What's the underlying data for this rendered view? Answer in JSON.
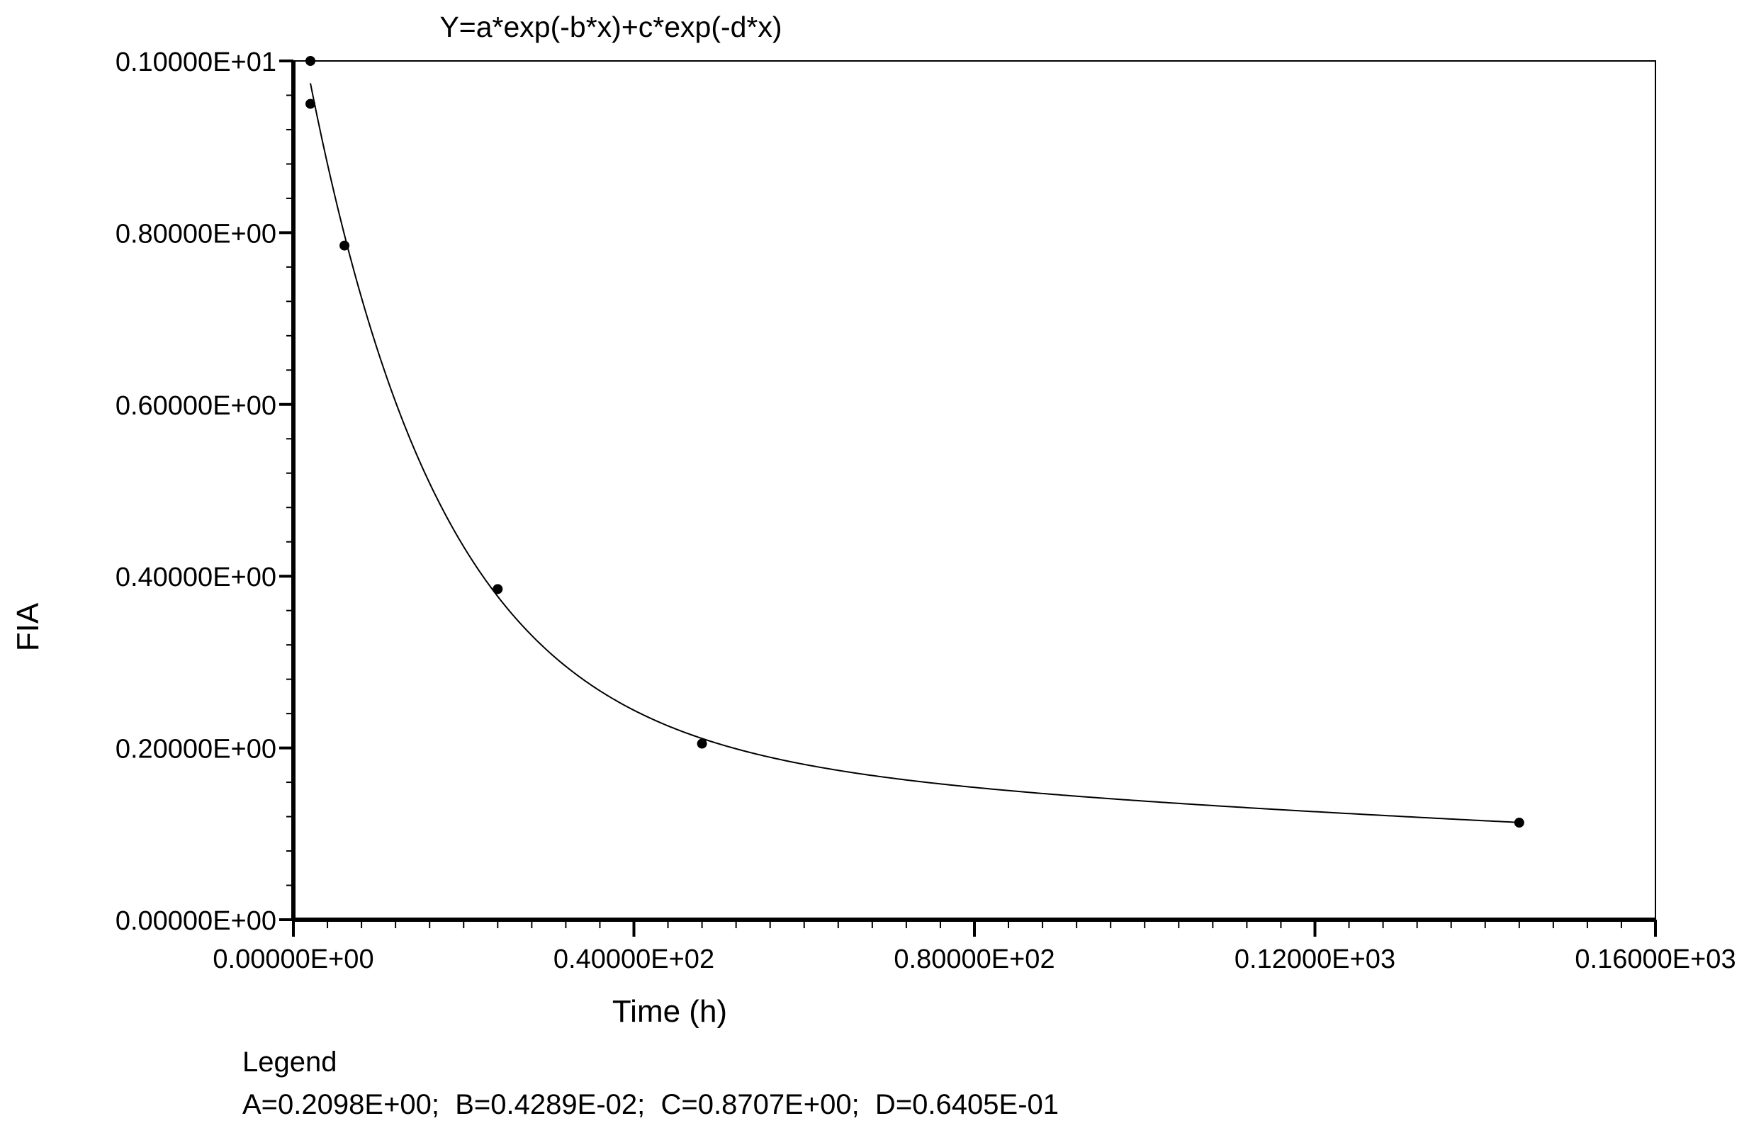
{
  "chart_data": {
    "type": "scatter",
    "title": "Y=a*exp(-b*x)+c*exp(-d*x)",
    "xlabel": "Time (h)",
    "ylabel": "FIA",
    "xlim": [
      0,
      160
    ],
    "ylim": [
      0,
      1.0
    ],
    "x_ticks": [
      {
        "value": 0,
        "label": "0.00000E+00"
      },
      {
        "value": 40,
        "label": "0.40000E+02"
      },
      {
        "value": 80,
        "label": "0.80000E+02"
      },
      {
        "value": 120,
        "label": "0.12000E+03"
      },
      {
        "value": 160,
        "label": "0.16000E+03"
      }
    ],
    "y_ticks": [
      {
        "value": 0,
        "label": "0.00000E+00"
      },
      {
        "value": 0.2,
        "label": "0.20000E+00"
      },
      {
        "value": 0.4,
        "label": "0.40000E+00"
      },
      {
        "value": 0.6,
        "label": "0.60000E+00"
      },
      {
        "value": 0.8,
        "label": "0.80000E+00"
      },
      {
        "value": 1.0,
        "label": "0.10000E+01"
      }
    ],
    "x_minor_step": 4,
    "y_minor_step": 0.04,
    "points": [
      {
        "x": 2,
        "y": 1.0
      },
      {
        "x": 2,
        "y": 0.95
      },
      {
        "x": 6,
        "y": 0.785
      },
      {
        "x": 24,
        "y": 0.385
      },
      {
        "x": 48,
        "y": 0.205
      },
      {
        "x": 144,
        "y": 0.113
      }
    ],
    "fit": {
      "a": 0.2098,
      "b": 0.004289,
      "c": 0.8707,
      "d": 0.06405,
      "x_start": 2,
      "x_end": 144
    },
    "grid": false,
    "legend": {
      "title": "Legend",
      "text": "A=0.2098E+00;  B=0.4289E-02;  C=0.8707E+00;  D=0.6405E-01"
    }
  }
}
